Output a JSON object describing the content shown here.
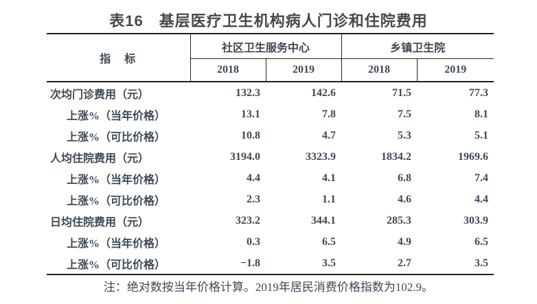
{
  "page": {
    "title": "表16　基层医疗卫生机构病人门诊和住院费用",
    "note": "注：绝对数按当年价格计算。2019年居民消费价格指数为102.9。"
  },
  "colors": {
    "text": "#3d4956",
    "title": "#45494e",
    "border": "#1f1f1f",
    "background": "#ffffff"
  },
  "table": {
    "indicator_header": "指　标",
    "groups": [
      {
        "label": "社区卫生服务中心",
        "years": [
          "2018",
          "2019"
        ]
      },
      {
        "label": "乡镇卫生院",
        "years": [
          "2018",
          "2019"
        ]
      }
    ],
    "rows": [
      {
        "label": "次均门诊费用（元）",
        "sub": false,
        "values": [
          "132.3",
          "142.6",
          "71.5",
          "77.3"
        ]
      },
      {
        "label": "上涨%（当年价格）",
        "sub": true,
        "values": [
          "13.1",
          "7.8",
          "7.5",
          "8.1"
        ]
      },
      {
        "label": "上涨%（可比价格）",
        "sub": true,
        "values": [
          "10.8",
          "4.7",
          "5.3",
          "5.1"
        ]
      },
      {
        "label": "人均住院费用（元）",
        "sub": false,
        "values": [
          "3194.0",
          "3323.9",
          "1834.2",
          "1969.6"
        ]
      },
      {
        "label": "上涨%（当年价格）",
        "sub": true,
        "values": [
          "4.4",
          "4.1",
          "6.8",
          "7.4"
        ]
      },
      {
        "label": "上涨%（可比价格）",
        "sub": true,
        "values": [
          "2.3",
          "1.1",
          "4.6",
          "4.4"
        ]
      },
      {
        "label": "日均住院费用（元）",
        "sub": false,
        "values": [
          "323.2",
          "344.1",
          "285.3",
          "303.9"
        ]
      },
      {
        "label": "上涨%（当年价格）",
        "sub": true,
        "values": [
          "0.3",
          "6.5",
          "4.9",
          "6.5"
        ]
      },
      {
        "label": "上涨%（可比价格）",
        "sub": true,
        "values": [
          "−1.8",
          "3.5",
          "2.7",
          "3.5"
        ]
      }
    ]
  }
}
